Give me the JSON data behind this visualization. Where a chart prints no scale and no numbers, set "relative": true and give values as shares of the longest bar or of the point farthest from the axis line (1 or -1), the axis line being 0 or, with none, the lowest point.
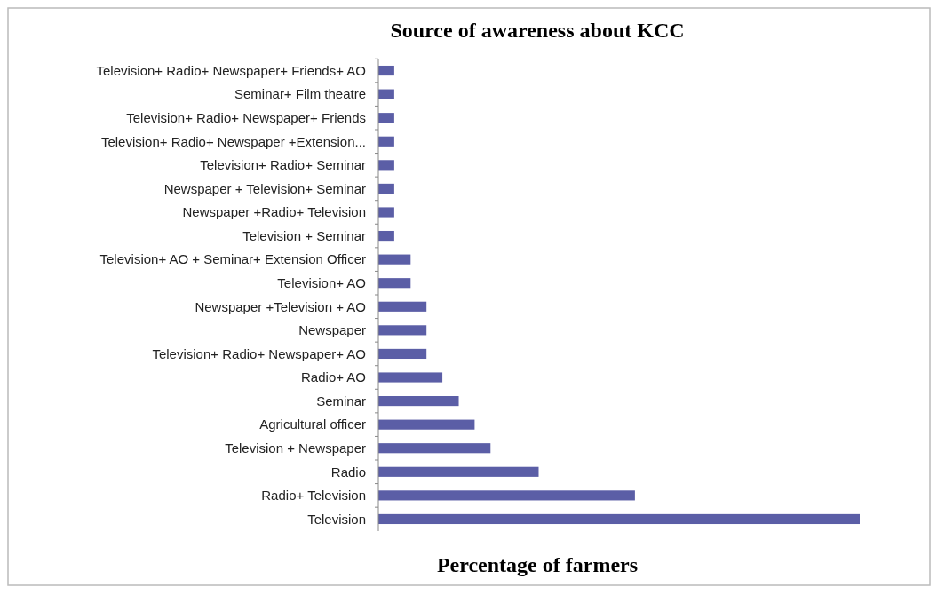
{
  "chart_data": {
    "type": "bar",
    "orientation": "horizontal",
    "relative": true,
    "title": "Source of awareness about KCC",
    "xlabel": "Percentage of farmers",
    "categories": [
      "Television+ Radio+ Newspaper+ Friends+ AO",
      "Seminar+ Film theatre",
      "Television+ Radio+ Newspaper+ Friends",
      "Television+ Radio+ Newspaper +Extension...",
      "Television+ Radio+ Seminar",
      "Newspaper + Television+ Seminar",
      "Newspaper +Radio+ Television",
      "Television + Seminar",
      "Television+ AO + Seminar+ Extension Officer",
      "Television+ AO",
      "Newspaper +Television +  AO",
      "Newspaper",
      "Television+ Radio+ Newspaper+ AO",
      "Radio+ AO",
      "Seminar",
      "Agricultural officer",
      "Television + Newspaper",
      "Radio",
      "Radio+ Television",
      "Television"
    ],
    "values": [
      0.033,
      0.033,
      0.033,
      0.033,
      0.033,
      0.033,
      0.033,
      0.033,
      0.067,
      0.067,
      0.1,
      0.1,
      0.1,
      0.133,
      0.167,
      0.2,
      0.233,
      0.333,
      0.533,
      1
    ],
    "color": "#5b5ea6"
  }
}
